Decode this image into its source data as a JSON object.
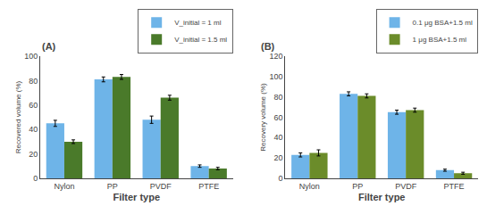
{
  "chart_data": [
    {
      "type": "bar",
      "title": "(A)",
      "categories": [
        "Nylon",
        "PP",
        "PVDF",
        "PTFE"
      ],
      "series": [
        {
          "name": "V_initial = 1 ml",
          "color": "#6EB4E8",
          "values": [
            45,
            81,
            48,
            10
          ],
          "errors": [
            2.5,
            2,
            3,
            1
          ]
        },
        {
          "name": "V_initial = 1.5 ml",
          "color": "#4A7A2A",
          "values": [
            30,
            83,
            66,
            8
          ],
          "errors": [
            1.5,
            2,
            2,
            1
          ]
        }
      ],
      "xlabel": "Filter type",
      "ylabel": "Recovered volume (%)",
      "ylim": [
        0,
        100
      ],
      "yticks": [
        0,
        20,
        40,
        60,
        80,
        100
      ],
      "grid": false,
      "legend": "upper right"
    },
    {
      "type": "bar",
      "title": "(B)",
      "categories": [
        "Nylon",
        "PP",
        "PVDF",
        "PTFE"
      ],
      "series": [
        {
          "name": "0.1 μg BSA+1.5 ml",
          "color": "#6EB4E8",
          "values": [
            23,
            83,
            65,
            8
          ],
          "errors": [
            2,
            2,
            2,
            1
          ]
        },
        {
          "name": "1 μg BSA+1.5 ml",
          "color": "#6B8C2A",
          "values": [
            25,
            81,
            67,
            5
          ],
          "errors": [
            3,
            2,
            2,
            1
          ]
        }
      ],
      "xlabel": "Filter type",
      "ylabel": "Recovery volume (%)",
      "ylim": [
        0,
        120
      ],
      "yticks": [
        0,
        20,
        40,
        60,
        80,
        100,
        120
      ],
      "grid": false,
      "legend": "upper right"
    }
  ]
}
